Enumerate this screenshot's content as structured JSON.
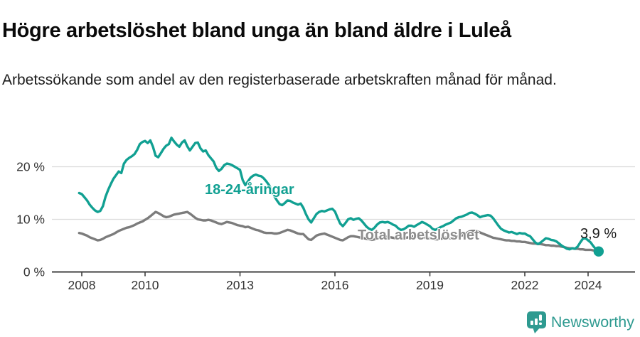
{
  "title": "Högre arbetslöshet bland unga än bland äldre i Luleå",
  "subtitle": "Arbetssökande som andel av den registerbaserade arbetskraften månad för månad.",
  "branding": {
    "name": "Newsworthy",
    "color": "#2e9a90",
    "icon": "bar-chart-speech-bubble"
  },
  "chart_data": {
    "type": "line",
    "title": "Högre arbetslöshet bland unga än bland äldre i Luleå",
    "xlabel": "",
    "ylabel": "",
    "unit": "%",
    "grid": "horizontal",
    "legend_position": "inline-labels",
    "monthly_from": "2007-12",
    "monthly_to": "2024-05",
    "xlim": [
      2007.0,
      2025.4
    ],
    "ylim": [
      0,
      27
    ],
    "x_ticks": [
      2008,
      2010,
      2013,
      2016,
      2019,
      2022,
      2024
    ],
    "y_ticks": [
      {
        "value": 0,
        "label": "0 %"
      },
      {
        "value": 10,
        "label": "10 %"
      },
      {
        "value": 20,
        "label": "20 %"
      }
    ],
    "end_annotation": {
      "label": "3,9 %",
      "value": 3.9,
      "series": "18-24-åringar"
    },
    "series": [
      {
        "name": "18-24-åringar",
        "color": "#11a092",
        "values": [
          15.0,
          14.8,
          14.2,
          13.6,
          12.8,
          12.2,
          11.7,
          11.4,
          11.6,
          12.5,
          14.3,
          15.6,
          16.7,
          17.7,
          18.4,
          19.1,
          18.8,
          20.6,
          21.3,
          21.7,
          22.0,
          22.4,
          23.2,
          24.3,
          24.7,
          24.9,
          24.5,
          25.0,
          23.8,
          22.1,
          21.8,
          22.6,
          23.4,
          24.0,
          24.3,
          25.5,
          24.8,
          24.2,
          23.8,
          24.6,
          25.0,
          23.9,
          23.1,
          23.8,
          24.5,
          24.6,
          23.5,
          22.9,
          23.1,
          22.2,
          21.6,
          21.0,
          19.8,
          19.2,
          19.6,
          20.3,
          20.6,
          20.5,
          20.3,
          20.0,
          19.7,
          19.4,
          17.5,
          16.5,
          17.2,
          17.9,
          18.3,
          18.5,
          18.3,
          18.2,
          17.8,
          17.2,
          16.5,
          15.5,
          14.4,
          13.6,
          12.9,
          12.7,
          13.1,
          13.6,
          13.5,
          13.2,
          13.0,
          12.8,
          13.0,
          12.2,
          11.0,
          10.0,
          9.4,
          10.2,
          11.0,
          11.4,
          11.6,
          11.5,
          11.7,
          11.9,
          12.0,
          11.5,
          10.3,
          9.2,
          8.7,
          9.3,
          10.0,
          10.2,
          9.9,
          10.1,
          10.2,
          9.8,
          9.2,
          8.6,
          8.2,
          8.0,
          8.4,
          9.0,
          9.4,
          9.5,
          9.4,
          9.5,
          9.3,
          9.0,
          8.8,
          8.3,
          8.0,
          8.1,
          8.4,
          8.8,
          8.8,
          8.6,
          8.9,
          9.2,
          9.5,
          9.3,
          9.0,
          8.7,
          8.2,
          8.0,
          8.2,
          8.5,
          8.7,
          9.0,
          9.2,
          9.4,
          9.8,
          10.2,
          10.4,
          10.5,
          10.7,
          10.9,
          11.2,
          11.3,
          11.1,
          10.8,
          10.4,
          10.6,
          10.7,
          10.8,
          10.7,
          10.2,
          9.5,
          8.8,
          8.2,
          7.9,
          7.7,
          7.5,
          7.6,
          7.4,
          7.2,
          7.4,
          7.3,
          7.3,
          7.0,
          6.8,
          6.2,
          5.6,
          5.3,
          5.6,
          6.0,
          6.4,
          6.3,
          6.1,
          6.0,
          5.8,
          5.4,
          5.0,
          4.7,
          4.4,
          4.3,
          4.5,
          4.4,
          4.8,
          5.6,
          6.3,
          6.4,
          6.0,
          5.6,
          4.9,
          4.3,
          3.9
        ]
      },
      {
        "name": "Total arbetslöshet",
        "color": "#7c7c7c",
        "values": [
          7.4,
          7.3,
          7.1,
          6.9,
          6.6,
          6.4,
          6.2,
          6.0,
          6.1,
          6.3,
          6.6,
          6.8,
          7.0,
          7.2,
          7.5,
          7.8,
          8.0,
          8.2,
          8.4,
          8.5,
          8.7,
          8.9,
          9.2,
          9.4,
          9.6,
          9.9,
          10.2,
          10.6,
          11.0,
          11.4,
          11.2,
          10.9,
          10.6,
          10.4,
          10.5,
          10.7,
          10.9,
          11.0,
          11.1,
          11.2,
          11.3,
          11.4,
          11.1,
          10.7,
          10.3,
          10.0,
          9.9,
          9.8,
          9.8,
          9.9,
          9.8,
          9.6,
          9.4,
          9.2,
          9.1,
          9.3,
          9.5,
          9.4,
          9.3,
          9.1,
          8.9,
          8.8,
          8.7,
          8.5,
          8.6,
          8.4,
          8.2,
          8.0,
          7.9,
          7.7,
          7.5,
          7.4,
          7.4,
          7.4,
          7.3,
          7.3,
          7.4,
          7.6,
          7.8,
          8.0,
          7.9,
          7.7,
          7.5,
          7.3,
          7.2,
          7.2,
          6.7,
          6.2,
          6.1,
          6.5,
          6.9,
          7.1,
          7.2,
          7.3,
          7.1,
          6.9,
          6.7,
          6.5,
          6.3,
          6.1,
          6.0,
          6.3,
          6.6,
          6.8,
          6.8,
          6.7,
          6.6,
          6.5,
          6.4,
          6.3,
          6.2,
          6.1,
          6.2,
          6.4,
          6.6,
          6.8,
          6.7,
          6.7,
          6.6,
          6.5,
          6.4,
          6.6,
          6.5,
          6.4,
          6.5,
          6.6,
          6.7,
          6.8,
          6.7,
          6.6,
          6.6,
          6.5,
          6.5,
          6.4,
          6.3,
          6.2,
          6.2,
          6.3,
          6.4,
          6.5,
          6.4,
          6.4,
          6.5,
          6.6,
          6.7,
          6.9,
          7.1,
          7.4,
          7.7,
          7.8,
          7.8,
          7.7,
          7.5,
          7.3,
          7.1,
          6.9,
          6.7,
          6.5,
          6.4,
          6.3,
          6.2,
          6.1,
          6.0,
          6.0,
          5.9,
          5.9,
          5.8,
          5.8,
          5.7,
          5.7,
          5.6,
          5.5,
          5.4,
          5.4,
          5.3,
          5.3,
          5.2,
          5.1,
          5.1,
          5.0,
          5.0,
          4.9,
          4.9,
          4.8,
          4.7,
          4.6,
          4.5,
          4.5,
          4.4,
          4.4,
          4.3,
          4.3,
          4.2,
          4.2,
          4.2,
          4.1,
          4.1,
          4.1
        ]
      }
    ]
  }
}
